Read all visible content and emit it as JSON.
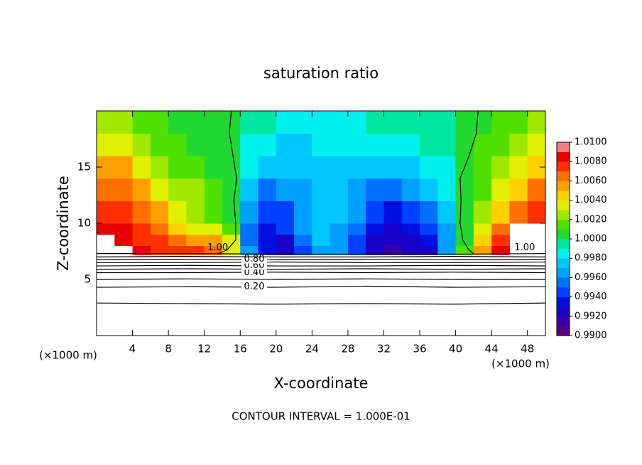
{
  "chart_data": {
    "type": "contour",
    "title": "saturation ratio",
    "xlabel": "X-coordinate",
    "ylabel": "Z-coordinate",
    "x_unit": "(×1000 m)",
    "y_unit": "(×1000 m)",
    "footer": "CONTOUR INTERVAL = 1.000E-01",
    "xlim": [
      0,
      50
    ],
    "ylim": [
      0,
      20
    ],
    "xticks": [
      4,
      8,
      12,
      16,
      20,
      24,
      28,
      32,
      36,
      40,
      44,
      48
    ],
    "yticks": [
      5,
      10,
      15
    ],
    "clim": [
      0.99,
      1.01
    ],
    "colors": [
      "#5a007f",
      "#3a00a8",
      "#1a00c8",
      "#0010e0",
      "#0040ff",
      "#0070ff",
      "#00a0ff",
      "#00c8ff",
      "#00f0f0",
      "#00e8a0",
      "#20d830",
      "#50e000",
      "#a0e800",
      "#e0f000",
      "#ffd000",
      "#ffa000",
      "#ff7000",
      "#ff3000",
      "#e80000",
      "#f08080"
    ],
    "colorbar_ticks": [
      {
        "value": 0.99,
        "label": "0.9900"
      },
      {
        "value": 0.992,
        "label": "0.9920"
      },
      {
        "value": 0.994,
        "label": "0.9940"
      },
      {
        "value": 0.996,
        "label": "0.9960"
      },
      {
        "value": 0.998,
        "label": "0.9980"
      },
      {
        "value": 1.0,
        "label": "1.0000"
      },
      {
        "value": 1.002,
        "label": "1.0020"
      },
      {
        "value": 1.004,
        "label": "1.0040"
      },
      {
        "value": 1.006,
        "label": "1.0060"
      },
      {
        "value": 1.008,
        "label": "1.0080"
      },
      {
        "value": 1.01,
        "label": "1.0100"
      }
    ],
    "x_edges": [
      0,
      2,
      4,
      6,
      8,
      10,
      12,
      14,
      16,
      18,
      20,
      22,
      24,
      26,
      28,
      30,
      32,
      34,
      36,
      38,
      40,
      42,
      44,
      46,
      48,
      50
    ],
    "y_edges": [
      7.2,
      8,
      9,
      10,
      12,
      14,
      16,
      18,
      20
    ],
    "field": [
      [
        null,
        null,
        1.008,
        1.0075,
        1.007,
        1.007,
        1.006,
        1.003,
        0.996,
        0.993,
        0.992,
        0.9945,
        0.9965,
        0.996,
        0.994,
        0.992,
        0.9915,
        0.992,
        0.9925,
        0.9965,
        1.001,
        1.005,
        1.008,
        null,
        null
      ],
      [
        null,
        1.008,
        1.0075,
        1.007,
        1.006,
        1.005,
        1.005,
        1.003,
        0.9955,
        0.993,
        0.9925,
        0.995,
        0.997,
        0.996,
        0.9945,
        0.9925,
        0.992,
        0.9925,
        0.993,
        0.996,
        1.0005,
        1.004,
        1.007,
        null,
        null
      ],
      [
        1.008,
        1.008,
        1.007,
        1.006,
        1.004,
        1.003,
        1.003,
        1.001,
        0.995,
        0.9935,
        0.994,
        0.996,
        0.9975,
        0.9965,
        0.995,
        0.993,
        0.9925,
        0.993,
        0.994,
        0.996,
        1.0005,
        1.003,
        1.006,
        null,
        null
      ],
      [
        1.007,
        1.007,
        1.0065,
        1.005,
        1.003,
        1.002,
        1.0015,
        1.0005,
        0.996,
        0.994,
        0.9945,
        0.996,
        0.9975,
        0.997,
        0.996,
        0.994,
        0.9935,
        0.994,
        0.995,
        0.997,
        1.0005,
        1.002,
        1.004,
        1.006,
        1.007
      ],
      [
        1.006,
        1.006,
        1.005,
        1.003,
        1.002,
        1.002,
        1.0012,
        1.0005,
        0.997,
        0.9955,
        0.996,
        0.9965,
        0.997,
        0.997,
        0.9965,
        0.9955,
        0.995,
        0.996,
        0.997,
        0.998,
        1.0005,
        1.0015,
        1.003,
        1.004,
        1.006
      ],
      [
        1.005,
        1.005,
        1.003,
        1.002,
        1.0015,
        1.001,
        1.0005,
        1.0003,
        0.998,
        0.997,
        0.997,
        0.997,
        0.9975,
        0.9978,
        0.9975,
        0.997,
        0.997,
        0.9975,
        0.998,
        0.9985,
        1.0005,
        1.0012,
        1.002,
        1.003,
        1.004
      ],
      [
        1.003,
        1.003,
        1.002,
        1.0015,
        1.001,
        1.0008,
        1.0005,
        1.0003,
        0.9988,
        0.998,
        0.9978,
        0.9975,
        0.998,
        0.998,
        0.998,
        0.998,
        0.998,
        0.9985,
        0.999,
        0.999,
        1.0005,
        1.001,
        1.0015,
        1.002,
        1.003
      ],
      [
        1.002,
        1.002,
        1.001,
        1.001,
        1.0005,
        1.0005,
        1.0003,
        1.0002,
        0.9995,
        0.999,
        0.9988,
        0.9985,
        0.9985,
        0.9985,
        0.9988,
        0.999,
        0.999,
        0.9992,
        0.9995,
        0.9995,
        1.0003,
        1.0005,
        1.001,
        1.0015,
        1.002
      ]
    ],
    "contours": [
      {
        "label": null,
        "x": [
          0,
          10,
          20,
          30,
          40,
          50
        ],
        "y": [
          2.9,
          2.85,
          2.8,
          2.85,
          2.8,
          2.9
        ]
      },
      {
        "label": "0.20",
        "x": [
          0,
          10,
          20,
          30,
          40,
          50
        ],
        "y": [
          4.3,
          4.35,
          4.3,
          4.4,
          4.3,
          4.35
        ]
      },
      {
        "label": null,
        "x": [
          0,
          10,
          20,
          30,
          40,
          50
        ],
        "y": [
          5.0,
          5.05,
          5.0,
          5.05,
          5.0,
          5.0
        ]
      },
      {
        "label": "0.40",
        "x": [
          0,
          10,
          20,
          30,
          40,
          50
        ],
        "y": [
          5.6,
          5.6,
          5.65,
          5.6,
          5.65,
          5.6
        ]
      },
      {
        "label": null,
        "x": [
          0,
          10,
          20,
          30,
          40,
          50
        ],
        "y": [
          5.9,
          5.95,
          5.9,
          5.95,
          5.9,
          5.95
        ]
      },
      {
        "label": "0.60",
        "x": [
          0,
          10,
          20,
          30,
          40,
          50
        ],
        "y": [
          6.2,
          6.25,
          6.2,
          6.2,
          6.25,
          6.2
        ]
      },
      {
        "label": null,
        "x": [
          0,
          10,
          20,
          30,
          40,
          50
        ],
        "y": [
          6.5,
          6.5,
          6.55,
          6.5,
          6.5,
          6.55
        ]
      },
      {
        "label": "0.80",
        "x": [
          0,
          10,
          20,
          30,
          40,
          50
        ],
        "y": [
          6.75,
          6.8,
          6.75,
          6.8,
          6.75,
          6.8
        ]
      },
      {
        "label": null,
        "x": [
          0,
          10,
          20,
          30,
          40,
          50
        ],
        "y": [
          7.0,
          7.05,
          7.0,
          7.0,
          7.05,
          7.0
        ]
      },
      {
        "label": null,
        "x": [
          0,
          10,
          20,
          30,
          40,
          50
        ],
        "y": [
          7.3,
          7.3,
          7.25,
          7.25,
          7.25,
          7.3
        ]
      },
      {
        "label": "1.00",
        "x": [
          13.5,
          14.5,
          15.5,
          15.5,
          15.3,
          15.6,
          15.2,
          14.8,
          15.0
        ],
        "y": [
          7.3,
          7.6,
          8.5,
          10,
          12,
          14,
          16,
          18,
          20
        ]
      },
      {
        "label": "1.00",
        "x": [
          42,
          41.5,
          40.8,
          40.5,
          40.6,
          40.5,
          41.5,
          42.3,
          42.5
        ],
        "y": [
          7.3,
          7.6,
          8.5,
          10,
          12,
          14,
          16,
          18,
          20
        ]
      }
    ]
  }
}
